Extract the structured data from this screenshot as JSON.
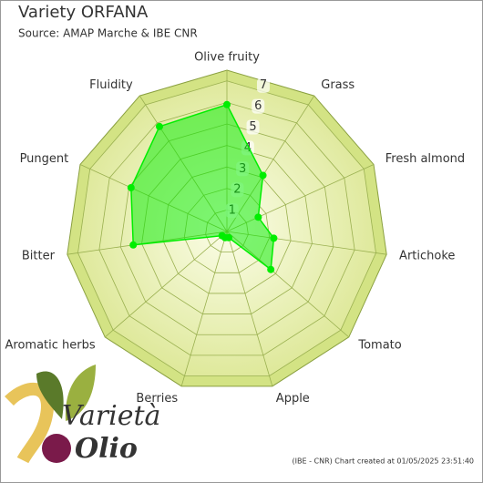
{
  "chart_data": {
    "type": "radar",
    "title": "Variety ORFANA",
    "subtitle": "Source: AMAP Marche & IBE CNR",
    "categories": [
      "Olive fruity",
      "Grass",
      "Fresh almond",
      "Artichoke",
      "Tomato",
      "Apple",
      "Berries",
      "Aromatic herbs",
      "Bitter",
      "Pungent",
      "Fluidity"
    ],
    "values": [
      5.9,
      3.1,
      1.6,
      2.2,
      2.7,
      0.3,
      0.3,
      0.3,
      4.4,
      4.9,
      5.8
    ],
    "color": "#00ee00",
    "rlim": [
      0,
      7.5
    ],
    "rticks": [
      1,
      2,
      3,
      4,
      5,
      6,
      7
    ],
    "grid": true,
    "footer": "(IBE - CNR) Chart created at 01/05/2025 23:51:40"
  },
  "logo": {
    "line1": "Varietà",
    "line2": "Olio"
  }
}
